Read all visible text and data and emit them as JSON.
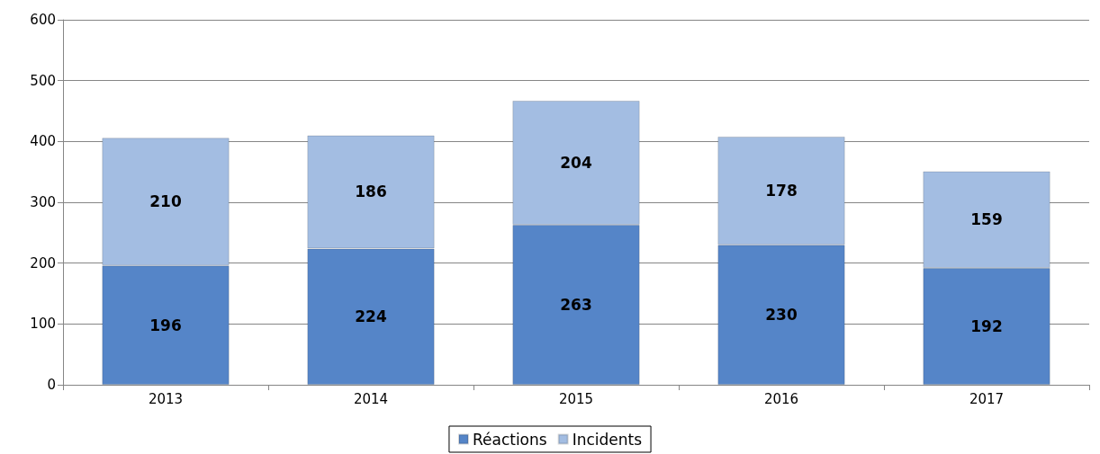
{
  "chart_data": {
    "type": "bar",
    "stacked": true,
    "categories": [
      "2013",
      "2014",
      "2015",
      "2016",
      "2017"
    ],
    "series": [
      {
        "name": "Réactions",
        "color": "#5585c8",
        "values": [
          196,
          224,
          263,
          230,
          192
        ]
      },
      {
        "name": "Incidents",
        "color": "#a3bde2",
        "values": [
          210,
          186,
          204,
          178,
          159
        ]
      }
    ],
    "ylim": [
      0,
      600
    ],
    "yticks": [
      0,
      100,
      200,
      300,
      400,
      500,
      600
    ],
    "grid": "y",
    "legend": "bottom",
    "data_labels": true
  }
}
